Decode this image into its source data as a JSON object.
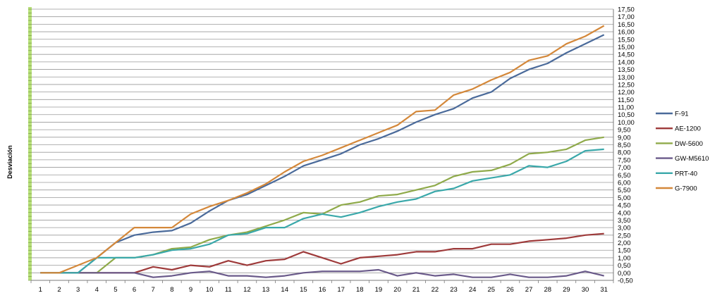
{
  "chart_data": {
    "type": "line",
    "ylabel": "Desviación",
    "xlabel": "",
    "ylim": [
      -0.5,
      17.5
    ],
    "ytick_step": 0.5,
    "grid": true,
    "legend_position": "right",
    "x": [
      1,
      2,
      3,
      4,
      5,
      6,
      7,
      8,
      9,
      10,
      11,
      12,
      13,
      14,
      15,
      16,
      17,
      18,
      19,
      20,
      21,
      22,
      23,
      24,
      25,
      26,
      27,
      28,
      29,
      30,
      31
    ],
    "x_tick_labels": [
      "1",
      "2",
      "3",
      "4",
      "5",
      "6",
      "7",
      "8",
      "9",
      "10",
      "11",
      "12",
      "13",
      "14",
      "15",
      "16",
      "17",
      "18",
      "19",
      "20",
      "21",
      "22",
      "23",
      "24",
      "25",
      "26",
      "27",
      "28",
      "29",
      "30",
      "31"
    ],
    "y_tick_labels": [
      "-0,50",
      "0,00",
      "0,50",
      "1,00",
      "1,50",
      "2,00",
      "2,50",
      "3,00",
      "3,50",
      "4,00",
      "4,50",
      "5,00",
      "5,50",
      "6,00",
      "6,50",
      "7,00",
      "7,50",
      "8,00",
      "8,50",
      "9,00",
      "9,50",
      "10,00",
      "10,50",
      "11,00",
      "11,50",
      "12,00",
      "12,50",
      "13,00",
      "13,50",
      "14,00",
      "14,50",
      "15,00",
      "15,50",
      "16,00",
      "16,50",
      "17,00",
      "17,50"
    ],
    "series": [
      {
        "name": "F-91",
        "color": "#4a6a9a",
        "values": [
          0,
          0,
          0,
          1,
          2,
          2.5,
          2.7,
          2.8,
          3.3,
          4.1,
          4.8,
          5.2,
          5.8,
          6.4,
          7.1,
          7.5,
          7.9,
          8.5,
          8.9,
          9.4,
          10,
          10.5,
          10.9,
          11.6,
          12,
          12.9,
          13.5,
          13.9,
          14.6,
          15.2,
          15.8
        ]
      },
      {
        "name": "AE-1200",
        "color": "#9e3a3a",
        "values": [
          0,
          0,
          0,
          0,
          0,
          0,
          0.4,
          0.2,
          0.5,
          0.4,
          0.8,
          0.5,
          0.8,
          0.9,
          1.4,
          1,
          0.6,
          1,
          1.1,
          1.2,
          1.4,
          1.4,
          1.6,
          1.6,
          1.9,
          1.9,
          2.1,
          2.2,
          2.3,
          2.5,
          2.6
        ]
      },
      {
        "name": "DW-5600",
        "color": "#8faa4a",
        "values": [
          0,
          0,
          0,
          0,
          1,
          1,
          1.2,
          1.6,
          1.7,
          2.2,
          2.5,
          2.7,
          3.1,
          3.5,
          4,
          3.9,
          4.5,
          4.7,
          5.1,
          5.2,
          5.5,
          5.8,
          6.4,
          6.7,
          6.8,
          7.2,
          7.9,
          8,
          8.2,
          8.8,
          9
        ]
      },
      {
        "name": "GW-M5610",
        "color": "#6a5a8a",
        "values": [
          0,
          0,
          0,
          0,
          0,
          0,
          -0.3,
          -0.2,
          0,
          0.1,
          -0.2,
          -0.2,
          -0.3,
          -0.2,
          0,
          0.1,
          0.1,
          0.1,
          0.2,
          -0.2,
          0,
          -0.2,
          -0.1,
          -0.3,
          -0.3,
          -0.1,
          -0.3,
          -0.3,
          -0.2,
          0.1,
          -0.2
        ]
      },
      {
        "name": "PRT-40",
        "color": "#3aa8aa",
        "values": [
          0,
          0,
          0,
          1,
          1,
          1,
          1.2,
          1.5,
          1.6,
          1.9,
          2.5,
          2.6,
          3,
          3,
          3.6,
          3.9,
          3.7,
          4,
          4.4,
          4.7,
          4.9,
          5.4,
          5.6,
          6.1,
          6.3,
          6.5,
          7.1,
          7,
          7.4,
          8.1,
          8.2
        ]
      },
      {
        "name": "G-7900",
        "color": "#d4883a",
        "values": [
          0,
          0,
          0.5,
          1,
          2,
          3,
          3,
          3,
          3.9,
          4.4,
          4.8,
          5.3,
          5.9,
          6.7,
          7.4,
          7.8,
          8.3,
          8.8,
          9.3,
          9.8,
          10.7,
          10.8,
          11.8,
          12.2,
          12.8,
          13.3,
          14.1,
          14.4,
          15.2,
          15.7,
          16.4
        ]
      }
    ]
  }
}
